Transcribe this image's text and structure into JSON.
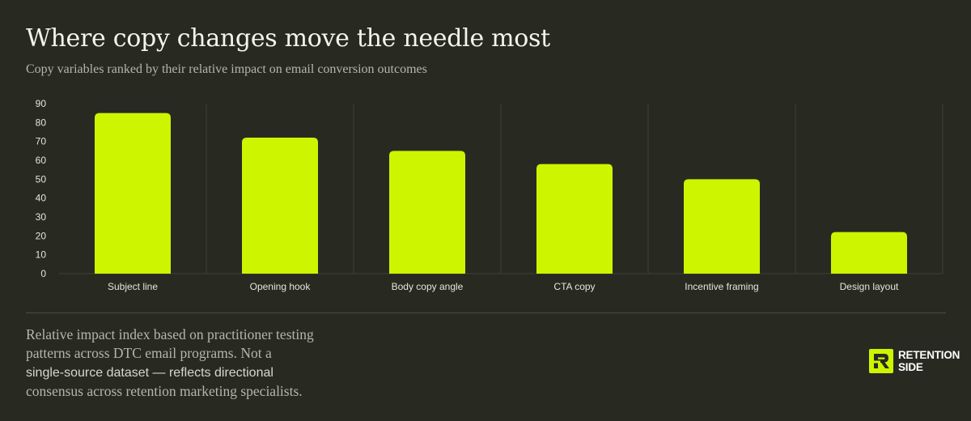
{
  "header": {
    "title": "Where copy changes move the needle most",
    "subtitle": "Copy variables ranked by their relative impact on email conversion outcomes"
  },
  "chart_data": {
    "type": "bar",
    "categories": [
      "Subject line",
      "Opening hook",
      "Body copy angle",
      "CTA copy",
      "Incentive framing",
      "Design layout"
    ],
    "values": [
      85,
      72,
      65,
      58,
      50,
      22
    ],
    "yticks": [
      "0",
      "10",
      "20",
      "30",
      "40",
      "50",
      "60",
      "70",
      "80",
      "90"
    ],
    "ylim": [
      0,
      90
    ],
    "grid": "vertical separators between categories",
    "bar_color": "#cdf500",
    "grid_color": "#3e4036"
  },
  "footnote": {
    "line1": "Relative impact index based on practitioner testing",
    "line2": "patterns across DTC email programs. Not a",
    "line3": "single-source dataset — reflects directional",
    "line4": "consensus across retention marketing specialists."
  },
  "logo": {
    "icon": "retention-side-logo-icon",
    "line1": "RETENTION",
    "line2": "SIDE",
    "accent_color": "#cdf500"
  }
}
